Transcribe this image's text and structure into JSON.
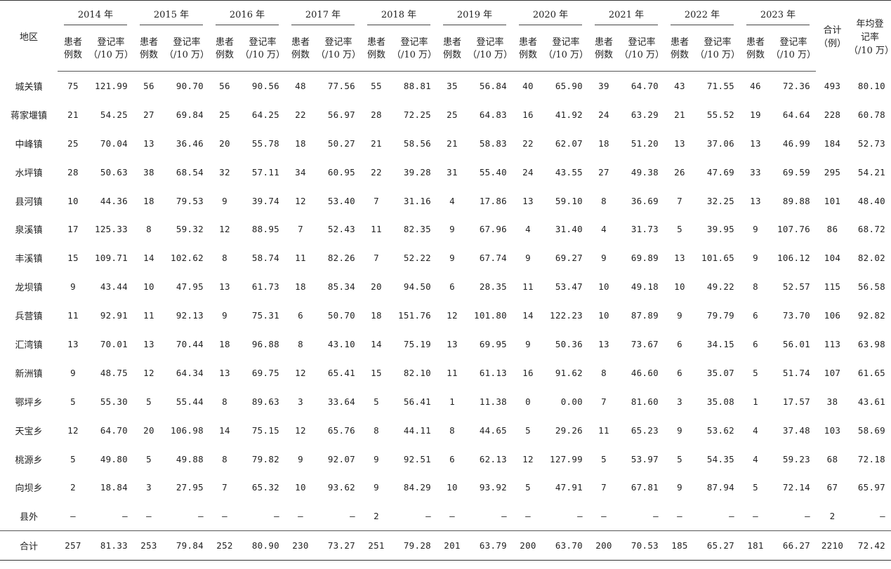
{
  "headers": {
    "region": "地区",
    "years": [
      "2014 年",
      "2015 年",
      "2016 年",
      "2017 年",
      "2018 年",
      "2019 年",
      "2020 年",
      "2021 年",
      "2022 年",
      "2023 年"
    ],
    "cases_label_line1": "患者",
    "cases_label_line2": "例数",
    "rate_label_line1": "登记率",
    "rate_label_line2": "（/10 万）",
    "total_line1": "合计",
    "total_line2": "（例）",
    "avg_line1": "年均登",
    "avg_line2": "记率",
    "avg_line3": "（/10 万）"
  },
  "rows": [
    {
      "region": "城关镇",
      "cells": [
        "75",
        "121.99",
        "56",
        "90.70",
        "56",
        "90.56",
        "48",
        "77.56",
        "55",
        "88.81",
        "35",
        "56.84",
        "40",
        "65.90",
        "39",
        "64.70",
        "43",
        "71.55",
        "46",
        "72.36"
      ],
      "total": "493",
      "avg": "80.10"
    },
    {
      "region": "蒋家堰镇",
      "cells": [
        "21",
        "54.25",
        "27",
        "69.84",
        "25",
        "64.25",
        "22",
        "56.97",
        "28",
        "72.25",
        "25",
        "64.83",
        "16",
        "41.92",
        "24",
        "63.29",
        "21",
        "55.52",
        "19",
        "64.64"
      ],
      "total": "228",
      "avg": "60.78"
    },
    {
      "region": "中峰镇",
      "cells": [
        "25",
        "70.04",
        "13",
        "36.46",
        "20",
        "55.78",
        "18",
        "50.27",
        "21",
        "58.56",
        "21",
        "58.83",
        "22",
        "62.07",
        "18",
        "51.20",
        "13",
        "37.06",
        "13",
        "46.99"
      ],
      "total": "184",
      "avg": "52.73"
    },
    {
      "region": "水坪镇",
      "cells": [
        "28",
        "50.63",
        "38",
        "68.54",
        "32",
        "57.11",
        "34",
        "60.95",
        "22",
        "39.28",
        "31",
        "55.40",
        "24",
        "43.55",
        "27",
        "49.38",
        "26",
        "47.69",
        "33",
        "69.59"
      ],
      "total": "295",
      "avg": "54.21"
    },
    {
      "region": "县河镇",
      "cells": [
        "10",
        "44.36",
        "18",
        "79.53",
        "9",
        "39.74",
        "12",
        "53.40",
        "7",
        "31.16",
        "4",
        "17.86",
        "13",
        "59.10",
        "8",
        "36.69",
        "7",
        "32.25",
        "13",
        "89.88"
      ],
      "total": "101",
      "avg": "48.40"
    },
    {
      "region": "泉溪镇",
      "cells": [
        "17",
        "125.33",
        "8",
        "59.32",
        "12",
        "88.95",
        "7",
        "52.43",
        "11",
        "82.35",
        "9",
        "67.96",
        "4",
        "31.40",
        "4",
        "31.73",
        "5",
        "39.95",
        "9",
        "107.76"
      ],
      "total": "86",
      "avg": "68.72"
    },
    {
      "region": "丰溪镇",
      "cells": [
        "15",
        "109.71",
        "14",
        "102.62",
        "8",
        "58.74",
        "11",
        "82.26",
        "7",
        "52.22",
        "9",
        "67.74",
        "9",
        "69.27",
        "9",
        "69.89",
        "13",
        "101.65",
        "9",
        "106.12"
      ],
      "total": "104",
      "avg": "82.02"
    },
    {
      "region": "龙坝镇",
      "cells": [
        "9",
        "43.44",
        "10",
        "47.95",
        "13",
        "61.73",
        "18",
        "85.34",
        "20",
        "94.50",
        "6",
        "28.35",
        "11",
        "53.47",
        "10",
        "49.18",
        "10",
        "49.22",
        "8",
        "52.57"
      ],
      "total": "115",
      "avg": "56.58"
    },
    {
      "region": "兵营镇",
      "cells": [
        "11",
        "92.91",
        "11",
        "92.13",
        "9",
        "75.31",
        "6",
        "50.70",
        "18",
        "151.76",
        "12",
        "101.80",
        "14",
        "122.23",
        "10",
        "87.89",
        "9",
        "79.79",
        "6",
        "73.70"
      ],
      "total": "106",
      "avg": "92.82"
    },
    {
      "region": "汇湾镇",
      "cells": [
        "13",
        "70.01",
        "13",
        "70.44",
        "18",
        "96.88",
        "8",
        "43.10",
        "14",
        "75.19",
        "13",
        "69.95",
        "9",
        "50.36",
        "13",
        "73.67",
        "6",
        "34.15",
        "6",
        "56.01"
      ],
      "total": "113",
      "avg": "63.98"
    },
    {
      "region": "新洲镇",
      "cells": [
        "9",
        "48.75",
        "12",
        "64.34",
        "13",
        "69.75",
        "12",
        "65.41",
        "15",
        "82.10",
        "11",
        "61.13",
        "16",
        "91.62",
        "8",
        "46.60",
        "6",
        "35.07",
        "5",
        "51.74"
      ],
      "total": "107",
      "avg": "61.65"
    },
    {
      "region": "鄂坪乡",
      "cells": [
        "5",
        "55.30",
        "5",
        "55.44",
        "8",
        "89.63",
        "3",
        "33.64",
        "5",
        "56.41",
        "1",
        "11.38",
        "0",
        "0.00",
        "7",
        "81.60",
        "3",
        "35.08",
        "1",
        "17.57"
      ],
      "total": "38",
      "avg": "43.61"
    },
    {
      "region": "天宝乡",
      "cells": [
        "12",
        "64.70",
        "20",
        "106.98",
        "14",
        "75.15",
        "12",
        "65.76",
        "8",
        "44.11",
        "8",
        "44.65",
        "5",
        "29.26",
        "11",
        "65.23",
        "9",
        "53.62",
        "4",
        "37.48"
      ],
      "total": "103",
      "avg": "58.69"
    },
    {
      "region": "桃源乡",
      "cells": [
        "5",
        "49.80",
        "5",
        "49.88",
        "8",
        "79.82",
        "9",
        "92.07",
        "9",
        "92.51",
        "6",
        "62.13",
        "12",
        "127.99",
        "5",
        "53.97",
        "5",
        "54.35",
        "4",
        "59.23"
      ],
      "total": "68",
      "avg": "72.18"
    },
    {
      "region": "向坝乡",
      "cells": [
        "2",
        "18.84",
        "3",
        "27.95",
        "7",
        "65.32",
        "10",
        "93.62",
        "9",
        "84.29",
        "10",
        "93.92",
        "5",
        "47.91",
        "7",
        "67.81",
        "9",
        "87.94",
        "5",
        "72.14"
      ],
      "total": "67",
      "avg": "65.97"
    },
    {
      "region": "县外",
      "cells": [
        "—",
        "—",
        "—",
        "—",
        "—",
        "—",
        "—",
        "—",
        "2",
        "—",
        "—",
        "—",
        "—",
        "—",
        "—",
        "—",
        "—",
        "—",
        "—",
        "—"
      ],
      "total": "2",
      "avg": "—"
    }
  ],
  "total_row": {
    "region": "合计",
    "cells": [
      "257",
      "81.33",
      "253",
      "79.84",
      "252",
      "80.90",
      "230",
      "73.27",
      "251",
      "79.28",
      "201",
      "63.79",
      "200",
      "63.70",
      "200",
      "70.53",
      "185",
      "65.27",
      "181",
      "66.27"
    ],
    "total": "2210",
    "avg": "72.42"
  }
}
